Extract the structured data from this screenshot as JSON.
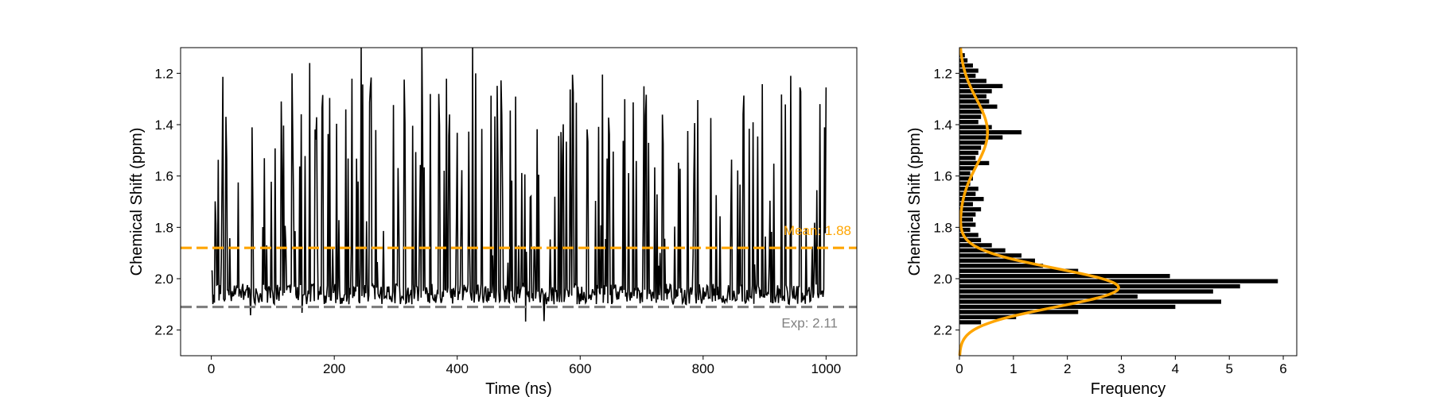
{
  "chart_data": [
    {
      "type": "line",
      "xlabel": "Time (ns)",
      "ylabel": "Chemical Shift (ppm)",
      "xlim": [
        -50,
        1050
      ],
      "ylim": [
        2.3,
        1.1
      ],
      "y_inverted": true,
      "xticks": [
        0,
        200,
        400,
        600,
        800,
        1000
      ],
      "yticks": [
        1.2,
        1.4,
        1.6,
        1.8,
        2.0,
        2.2
      ],
      "xtick_labels": [
        "0",
        "200",
        "400",
        "600",
        "800",
        "1000"
      ],
      "ytick_labels": [
        "1.2",
        "1.4",
        "1.6",
        "1.8",
        "2.0",
        "2.2"
      ],
      "grid": false,
      "series": [
        {
          "color": "#000000",
          "x_start": 0,
          "x_end": 1000,
          "points": 800,
          "baseline": 2.05,
          "min_seen": 1.1,
          "max_seen": 2.17
        }
      ],
      "reference_lines": [
        {
          "label": "Mean: 1.88",
          "value": 1.88,
          "color": "#FFA500",
          "style": "dashed"
        },
        {
          "label": "Exp: 2.11",
          "value": 2.11,
          "color": "#808080",
          "style": "dashed"
        }
      ]
    },
    {
      "type": "bar",
      "orientation": "horizontal",
      "xlabel": "Frequency",
      "ylabel": "Chemical Shift (ppm)",
      "xlim": [
        0,
        6.25
      ],
      "ylim": [
        2.3,
        1.1
      ],
      "y_inverted": true,
      "xticks": [
        0,
        1,
        2,
        3,
        4,
        5,
        6
      ],
      "yticks": [
        1.2,
        1.4,
        1.6,
        1.8,
        2.0,
        2.2
      ],
      "xtick_labels": [
        "0",
        "1",
        "2",
        "3",
        "4",
        "5",
        "6"
      ],
      "ytick_labels": [
        "1.2",
        "1.4",
        "1.6",
        "1.8",
        "2.0",
        "2.2"
      ],
      "grid": false,
      "bins": [
        {
          "y": 1.13,
          "v": 0.1
        },
        {
          "y": 1.15,
          "v": 0.15
        },
        {
          "y": 1.17,
          "v": 0.25
        },
        {
          "y": 1.19,
          "v": 0.35
        },
        {
          "y": 1.21,
          "v": 0.3
        },
        {
          "y": 1.23,
          "v": 0.5
        },
        {
          "y": 1.25,
          "v": 0.8
        },
        {
          "y": 1.27,
          "v": 0.6
        },
        {
          "y": 1.29,
          "v": 0.5
        },
        {
          "y": 1.31,
          "v": 0.55
        },
        {
          "y": 1.33,
          "v": 0.7
        },
        {
          "y": 1.35,
          "v": 0.45
        },
        {
          "y": 1.37,
          "v": 0.4
        },
        {
          "y": 1.39,
          "v": 0.35
        },
        {
          "y": 1.41,
          "v": 0.6
        },
        {
          "y": 1.43,
          "v": 1.15
        },
        {
          "y": 1.45,
          "v": 0.8
        },
        {
          "y": 1.47,
          "v": 0.5
        },
        {
          "y": 1.49,
          "v": 0.4
        },
        {
          "y": 1.51,
          "v": 0.35
        },
        {
          "y": 1.53,
          "v": 0.3
        },
        {
          "y": 1.55,
          "v": 0.55
        },
        {
          "y": 1.57,
          "v": 0.3
        },
        {
          "y": 1.59,
          "v": 0.2
        },
        {
          "y": 1.61,
          "v": 0.25
        },
        {
          "y": 1.63,
          "v": 0.2
        },
        {
          "y": 1.65,
          "v": 0.35
        },
        {
          "y": 1.67,
          "v": 0.3
        },
        {
          "y": 1.69,
          "v": 0.45
        },
        {
          "y": 1.71,
          "v": 0.25
        },
        {
          "y": 1.73,
          "v": 0.4
        },
        {
          "y": 1.75,
          "v": 0.3
        },
        {
          "y": 1.77,
          "v": 0.25
        },
        {
          "y": 1.79,
          "v": 0.3
        },
        {
          "y": 1.81,
          "v": 0.2
        },
        {
          "y": 1.83,
          "v": 0.35
        },
        {
          "y": 1.85,
          "v": 0.4
        },
        {
          "y": 1.87,
          "v": 0.6
        },
        {
          "y": 1.89,
          "v": 0.85
        },
        {
          "y": 1.91,
          "v": 1.15
        },
        {
          "y": 1.93,
          "v": 1.4
        },
        {
          "y": 1.95,
          "v": 1.55
        },
        {
          "y": 1.97,
          "v": 2.2
        },
        {
          "y": 1.99,
          "v": 3.9
        },
        {
          "y": 2.01,
          "v": 5.9
        },
        {
          "y": 2.03,
          "v": 5.2
        },
        {
          "y": 2.05,
          "v": 4.7
        },
        {
          "y": 2.07,
          "v": 3.3
        },
        {
          "y": 2.09,
          "v": 4.85
        },
        {
          "y": 2.11,
          "v": 4.0
        },
        {
          "y": 2.13,
          "v": 2.2
        },
        {
          "y": 2.15,
          "v": 1.05
        },
        {
          "y": 2.17,
          "v": 0.4
        }
      ],
      "bar_color": "#000000",
      "curve": {
        "color": "#FFA500",
        "label": ""
      }
    }
  ]
}
